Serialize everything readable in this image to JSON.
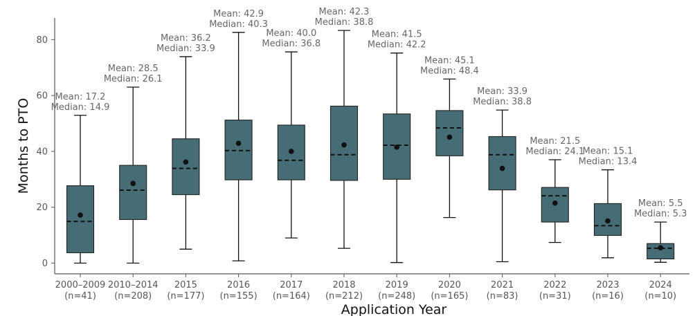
{
  "chart_data": {
    "type": "box",
    "xlabel": "Application Year",
    "ylabel": "Months to PTO",
    "ylim": [
      -4,
      87
    ],
    "yticks": [
      0,
      20,
      40,
      60,
      80
    ],
    "box_color": "#466c75",
    "mean_label_prefix": "Mean: ",
    "median_label_prefix": "Median: ",
    "categories": [
      {
        "label": "2000–2009",
        "n_label": "(n=41)",
        "min": 0.0,
        "q1": 3.7,
        "median": 14.9,
        "q3": 27.7,
        "max": 52.9,
        "mean": 17.2,
        "mean_text": "17.2",
        "median_text": "14.9"
      },
      {
        "label": "2010–2014",
        "n_label": "(n=208)",
        "min": 0.0,
        "q1": 15.6,
        "median": 26.1,
        "q3": 35.0,
        "max": 63.0,
        "mean": 28.5,
        "mean_text": "28.5",
        "median_text": "26.1"
      },
      {
        "label": "2015",
        "n_label": "(n=177)",
        "min": 5.0,
        "q1": 24.5,
        "median": 33.9,
        "q3": 44.5,
        "max": 73.9,
        "mean": 36.2,
        "mean_text": "36.2",
        "median_text": "33.9"
      },
      {
        "label": "2016",
        "n_label": "(n=155)",
        "min": 0.8,
        "q1": 29.8,
        "median": 40.3,
        "q3": 51.2,
        "max": 82.6,
        "mean": 42.9,
        "mean_text": "42.9",
        "median_text": "40.3"
      },
      {
        "label": "2017",
        "n_label": "(n=164)",
        "min": 9.0,
        "q1": 29.8,
        "median": 36.8,
        "q3": 49.4,
        "max": 75.6,
        "mean": 40.0,
        "mean_text": "40.0",
        "median_text": "36.8"
      },
      {
        "label": "2018",
        "n_label": "(n=212)",
        "min": 5.3,
        "q1": 29.6,
        "median": 38.8,
        "q3": 56.2,
        "max": 83.3,
        "mean": 42.3,
        "mean_text": "42.3",
        "median_text": "38.8"
      },
      {
        "label": "2019",
        "n_label": "(n=248)",
        "min": 0.2,
        "q1": 30.0,
        "median": 42.2,
        "q3": 53.4,
        "max": 75.2,
        "mean": 41.5,
        "mean_text": "41.5",
        "median_text": "42.2"
      },
      {
        "label": "2020",
        "n_label": "(n=165)",
        "min": 16.3,
        "q1": 38.4,
        "median": 48.4,
        "q3": 54.6,
        "max": 65.9,
        "mean": 45.1,
        "mean_text": "45.1",
        "median_text": "48.4"
      },
      {
        "label": "2021",
        "n_label": "(n=83)",
        "min": 0.5,
        "q1": 26.2,
        "median": 38.8,
        "q3": 45.3,
        "max": 54.8,
        "mean": 33.9,
        "mean_text": "33.9",
        "median_text": "38.8"
      },
      {
        "label": "2022",
        "n_label": "(n=31)",
        "min": 7.4,
        "q1": 14.7,
        "median": 24.1,
        "q3": 27.1,
        "max": 37.0,
        "mean": 21.5,
        "mean_text": "21.5",
        "median_text": "24.1"
      },
      {
        "label": "2023",
        "n_label": "(n=16)",
        "min": 1.9,
        "q1": 9.9,
        "median": 13.4,
        "q3": 21.3,
        "max": 33.4,
        "mean": 15.1,
        "mean_text": "15.1",
        "median_text": "13.4"
      },
      {
        "label": "2024",
        "n_label": "(n=10)",
        "min": 0.3,
        "q1": 1.5,
        "median": 5.3,
        "q3": 7.0,
        "max": 14.7,
        "mean": 5.5,
        "mean_text": "5.5",
        "median_text": "5.3"
      }
    ]
  }
}
